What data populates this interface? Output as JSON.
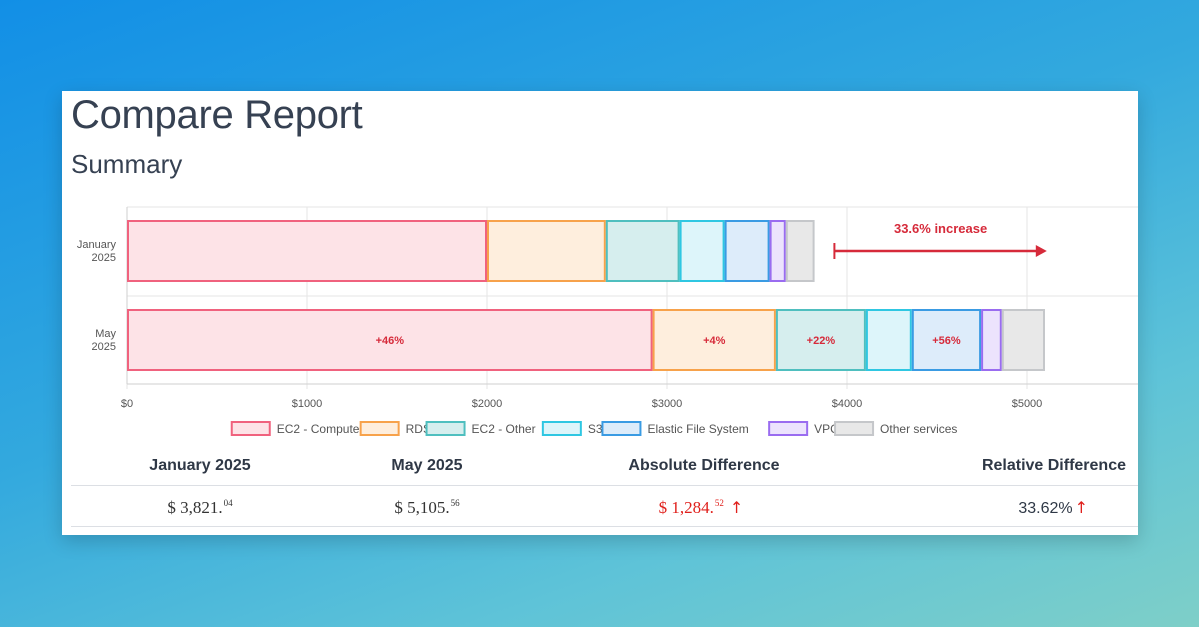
{
  "page": {
    "title": "Compare Report",
    "section": "Summary"
  },
  "chart_data": {
    "type": "bar",
    "orientation": "horizontal",
    "stacked": true,
    "categories": [
      "January 2025",
      "May 2025"
    ],
    "xlim": [
      0,
      5600
    ],
    "xticks": [
      0,
      1000,
      2000,
      3000,
      4000,
      5000
    ],
    "xtick_labels": [
      "$0",
      "$1000",
      "$2000",
      "$3000",
      "$4000",
      "$5000"
    ],
    "grid": true,
    "legend": "bottom",
    "series": [
      {
        "name": "EC2 - Compute",
        "values": [
          2000,
          2920
        ],
        "color": "#f0627e",
        "fill": "#fde3e7",
        "labels": [
          "",
          "+46%"
        ]
      },
      {
        "name": "RDS",
        "values": [
          660,
          685
        ],
        "color": "#f7a24b",
        "fill": "#feeedd",
        "labels": [
          "",
          "+4%"
        ]
      },
      {
        "name": "EC2 - Other",
        "values": [
          410,
          500
        ],
        "color": "#4fbfbf",
        "fill": "#d6eeee",
        "labels": [
          "",
          "+22%"
        ]
      },
      {
        "name": "S3",
        "values": [
          250,
          255
        ],
        "color": "#2fc7e2",
        "fill": "#ddf5fa",
        "labels": [
          "",
          ""
        ]
      },
      {
        "name": "Elastic File System",
        "values": [
          250,
          385
        ],
        "color": "#3a9be3",
        "fill": "#ddecfa",
        "labels": [
          "",
          "+56%"
        ]
      },
      {
        "name": "VPC",
        "values": [
          90,
          115
        ],
        "color": "#9a6cf0",
        "fill": "#ece3fd",
        "labels": [
          "",
          ""
        ]
      },
      {
        "name": "Other services",
        "values": [
          160,
          240
        ],
        "color": "#c5c7ca",
        "fill": "#e8e8e8",
        "labels": [
          "",
          ""
        ]
      }
    ],
    "annotation": {
      "text": "33.6% increase",
      "from": 3930,
      "to": 5110,
      "color": "#d62a3a"
    }
  },
  "table": {
    "headers": [
      "January 2025",
      "May 2025",
      "Absolute Difference",
      "Relative Difference"
    ],
    "row": {
      "jan": {
        "main": "$ 3,821.",
        "cents": "04"
      },
      "may": {
        "main": "$ 5,105.",
        "cents": "56"
      },
      "abs": {
        "main": "$ 1,284.",
        "cents": "52",
        "arrow": "↑"
      },
      "rel": {
        "main": "33.62%",
        "arrow": "↑"
      }
    }
  }
}
